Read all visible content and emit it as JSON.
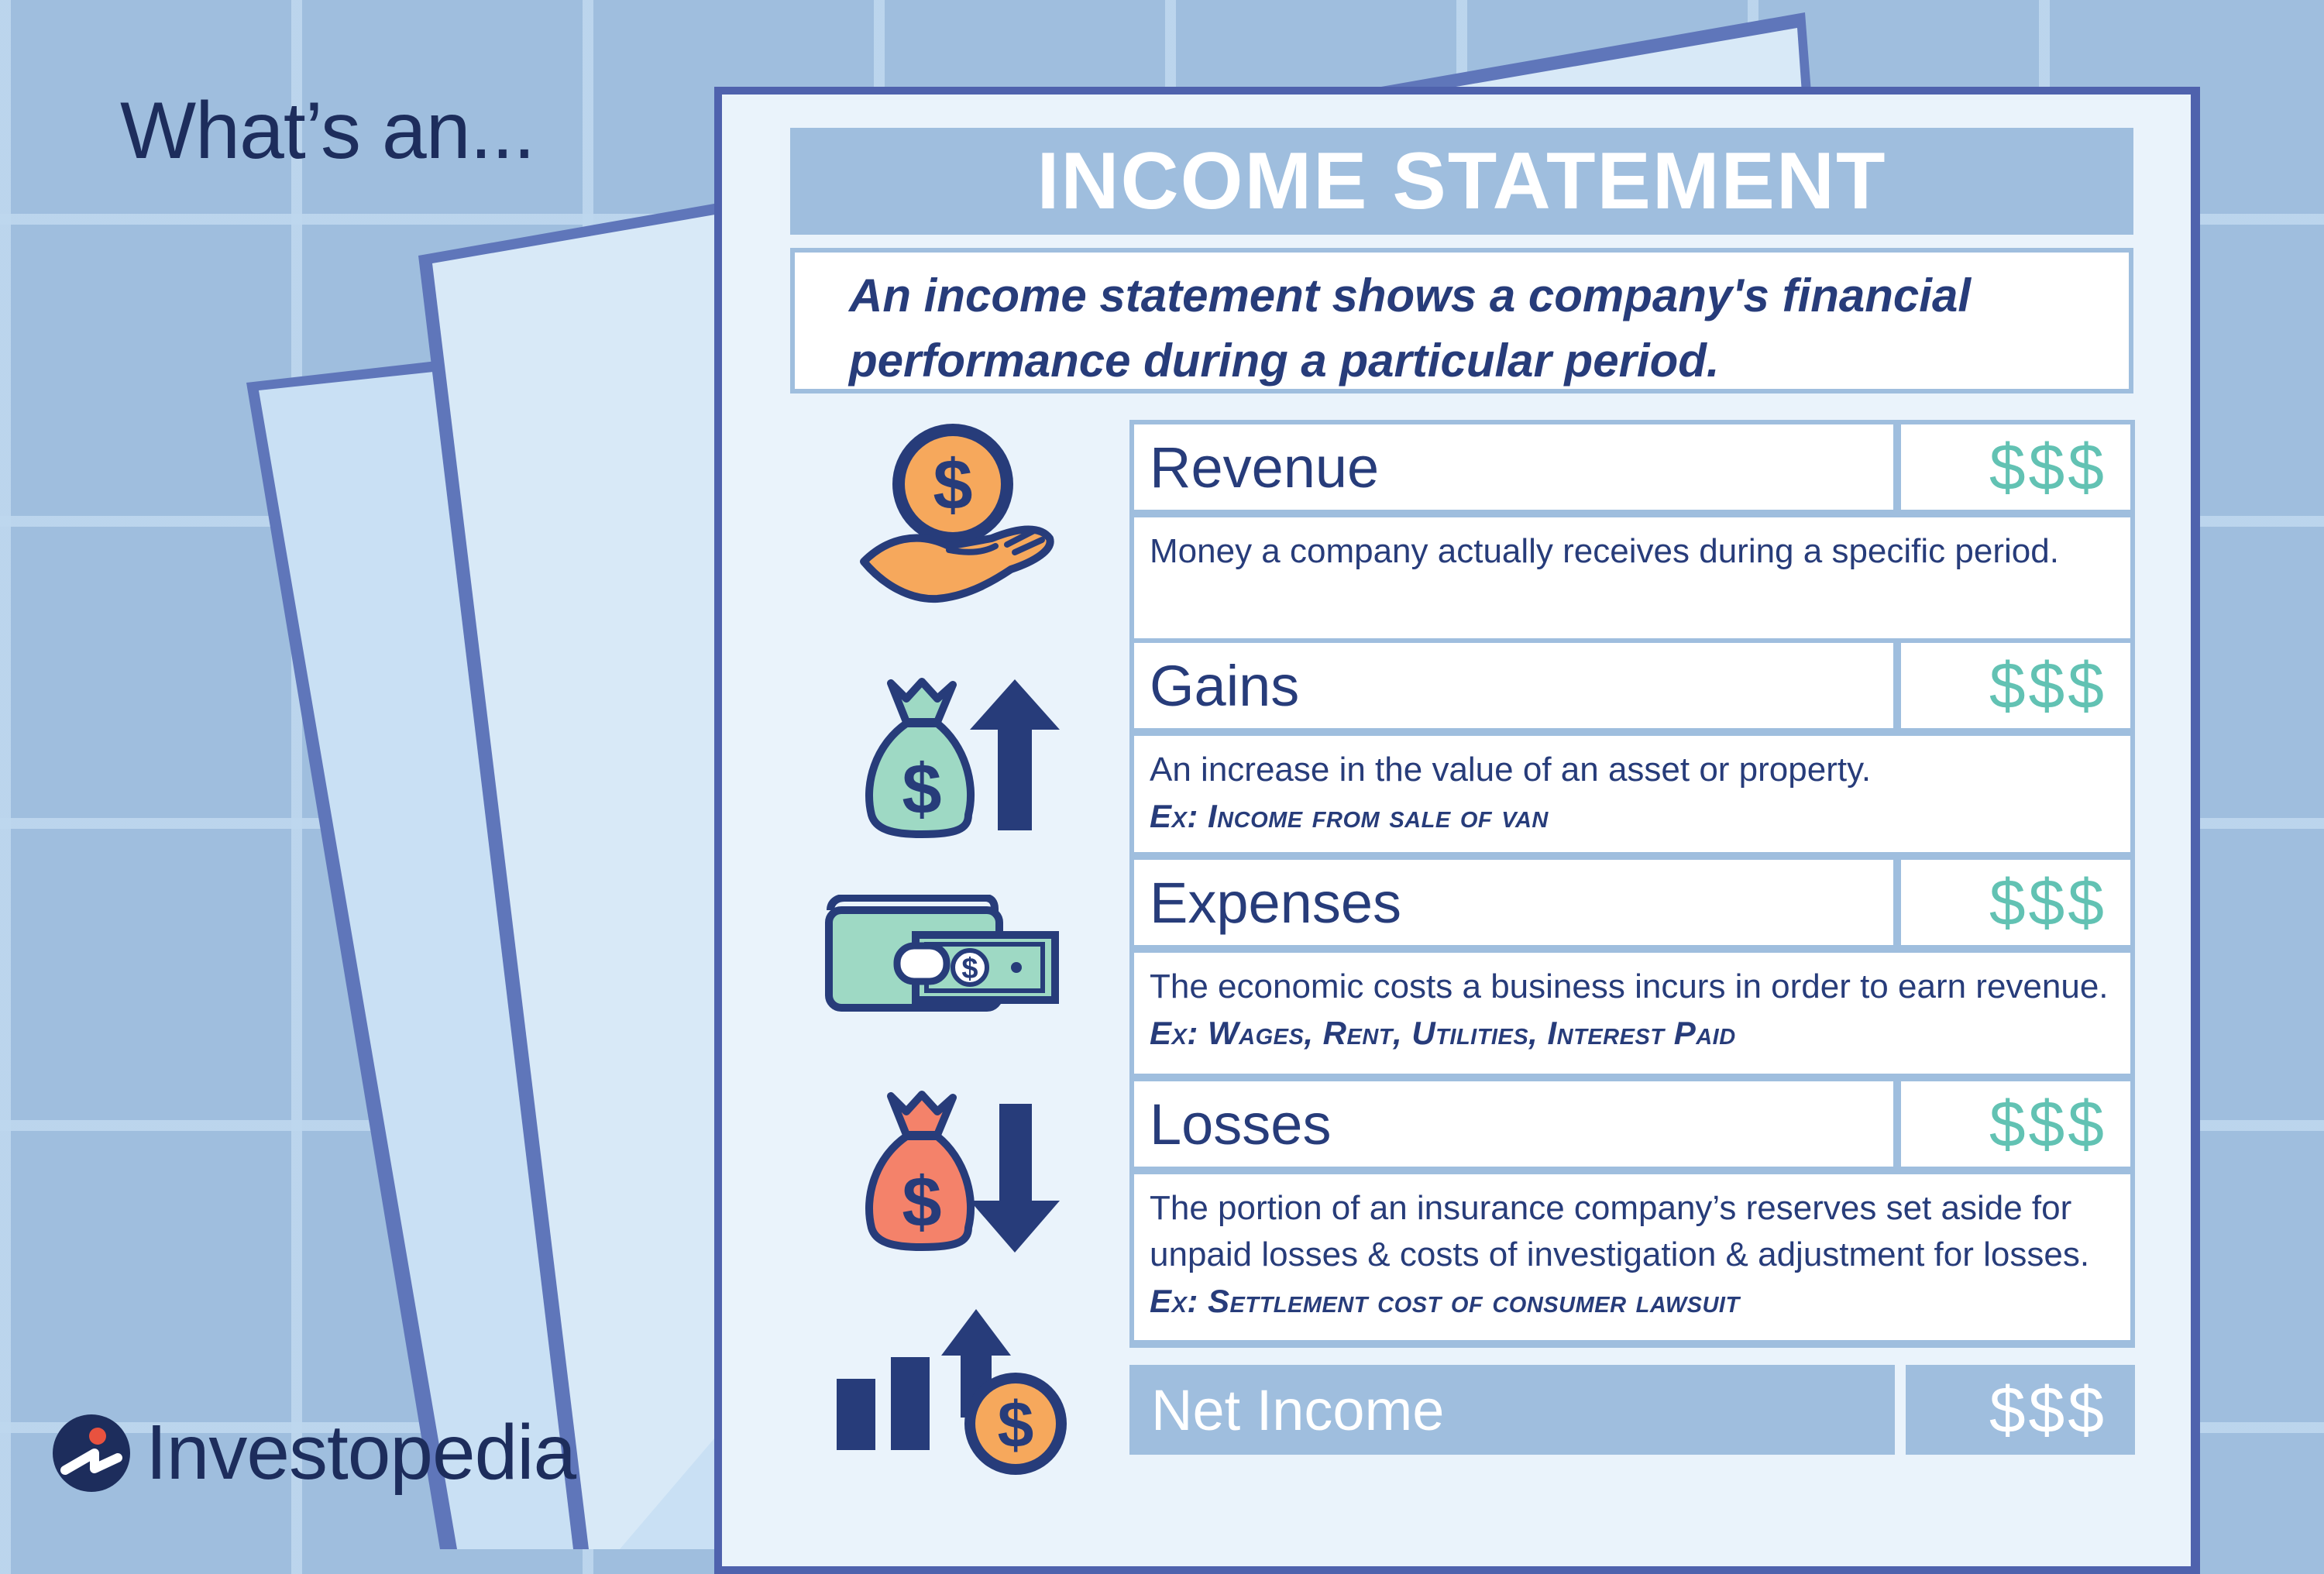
{
  "headline": "What’s an...",
  "title": "INCOME STATEMENT",
  "intro": "An income statement shows a company's financial performance during a particular period.",
  "rows": [
    {
      "name": "Revenue",
      "amount": "$$$",
      "icon": "hand-holding-coin-icon",
      "description": "Money a company actually receives during a specific period.",
      "example": ""
    },
    {
      "name": "Gains",
      "amount": "$$$",
      "icon": "money-bag-up-arrow-icon",
      "description": "An increase in the value of an asset or property.",
      "example": "Ex: Income from sale of van"
    },
    {
      "name": "Expenses",
      "amount": "$$$",
      "icon": "wallet-cash-icon",
      "description": "The economic costs a business incurs in order to earn revenue.",
      "example": "Ex: Wages, Rent, Utilities, Interest Paid"
    },
    {
      "name": "Losses",
      "amount": "$$$",
      "icon": "money-bag-down-arrow-icon",
      "description": "The portion of an insurance company’s reserves set aside for unpaid losses & costs of investigation & adjustment for losses.",
      "example": "Ex: Settlement cost of consumer lawsuit"
    }
  ],
  "net_income": {
    "name": "Net Income",
    "amount": "$$$",
    "icon": "growth-chart-coin-icon"
  },
  "brand": {
    "name": "Investopedia",
    "icon": "investopedia-logo-icon"
  },
  "colors": {
    "background": "#9fbede",
    "navy": "#273c7a",
    "teal": "#62c2b3",
    "orange": "#f6a85c",
    "mint": "#9ed9c4",
    "coral": "#f4826a"
  }
}
